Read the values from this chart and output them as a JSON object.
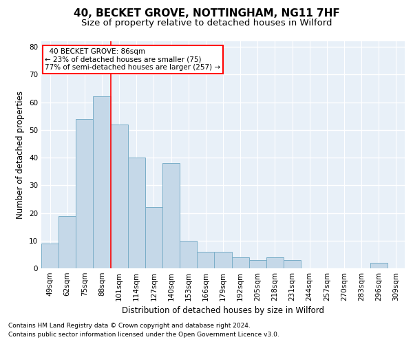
{
  "title_line1": "40, BECKET GROVE, NOTTINGHAM, NG11 7HF",
  "title_line2": "Size of property relative to detached houses in Wilford",
  "xlabel": "Distribution of detached houses by size in Wilford",
  "ylabel": "Number of detached properties",
  "categories": [
    "49sqm",
    "62sqm",
    "75sqm",
    "88sqm",
    "101sqm",
    "114sqm",
    "127sqm",
    "140sqm",
    "153sqm",
    "166sqm",
    "179sqm",
    "192sqm",
    "205sqm",
    "218sqm",
    "231sqm",
    "244sqm",
    "257sqm",
    "270sqm",
    "283sqm",
    "296sqm",
    "309sqm"
  ],
  "values": [
    9,
    19,
    54,
    62,
    52,
    40,
    22,
    38,
    10,
    6,
    6,
    4,
    3,
    4,
    3,
    0,
    0,
    0,
    0,
    2,
    0
  ],
  "bar_color": "#c5d8e8",
  "bar_edge_color": "#7aaec8",
  "bar_width": 1.0,
  "vline_x": 3.5,
  "vline_color": "red",
  "ylim": [
    0,
    82
  ],
  "yticks": [
    0,
    10,
    20,
    30,
    40,
    50,
    60,
    70,
    80
  ],
  "annotation_box_text": "  40 BECKET GROVE: 86sqm\n← 23% of detached houses are smaller (75)\n77% of semi-detached houses are larger (257) →",
  "annotation_box_color": "red",
  "footnote1": "Contains HM Land Registry data © Crown copyright and database right 2024.",
  "footnote2": "Contains public sector information licensed under the Open Government Licence v3.0.",
  "background_color": "#e8f0f8",
  "grid_color": "white",
  "title_fontsize": 11,
  "subtitle_fontsize": 9.5,
  "axis_label_fontsize": 8.5,
  "tick_fontsize": 7.5,
  "footnote_fontsize": 6.5,
  "annot_fontsize": 7.5
}
